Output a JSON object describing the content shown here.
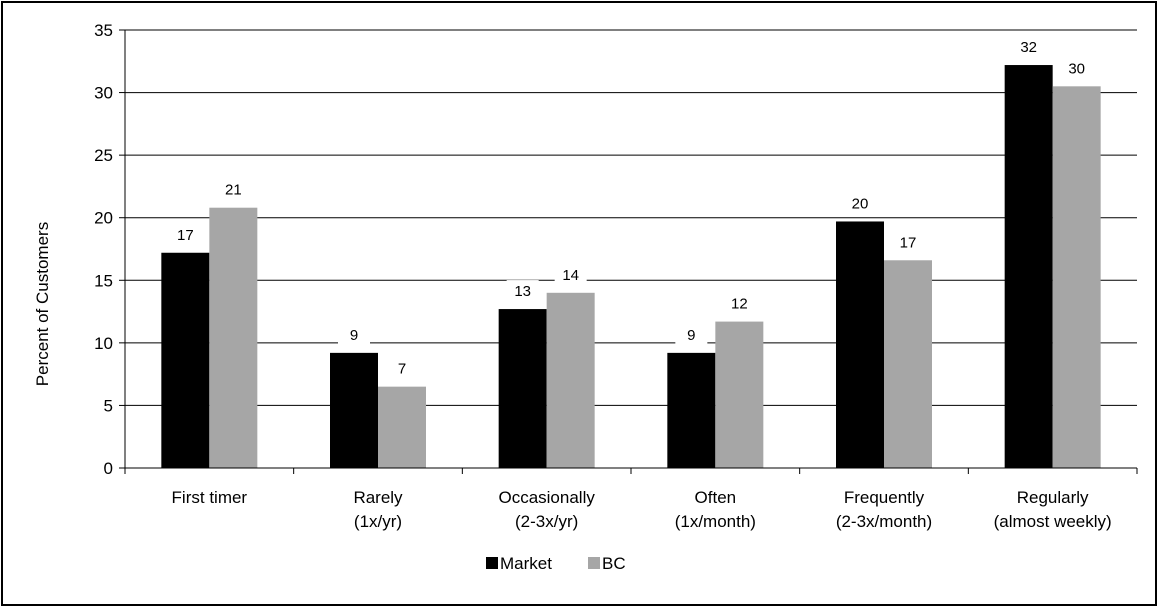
{
  "chart_data": {
    "type": "bar",
    "title": "",
    "xlabel": "",
    "ylabel": "Percent of Customers",
    "ylim": [
      0,
      35
    ],
    "yticks": [
      0,
      5,
      10,
      15,
      20,
      25,
      30,
      35
    ],
    "grid": true,
    "legend_position": "bottom",
    "categories": [
      [
        "First timer"
      ],
      [
        "Rarely",
        "(1x/yr)"
      ],
      [
        "Occasionally",
        "(2-3x/yr)"
      ],
      [
        "Often",
        "(1x/month)"
      ],
      [
        "Frequently",
        "(2-3x/month)"
      ],
      [
        "Regularly",
        "(almost weekly)"
      ]
    ],
    "series": [
      {
        "name": "Market",
        "color": "#000000",
        "values": [
          17.2,
          9.2,
          12.7,
          9.2,
          19.7,
          32.2
        ],
        "labels": [
          "17",
          "9",
          "13",
          "9",
          "20",
          "32"
        ]
      },
      {
        "name": "BC",
        "color": "#a6a6a6",
        "values": [
          20.8,
          6.5,
          14.0,
          11.7,
          16.6,
          30.5
        ],
        "labels": [
          "21",
          "7",
          "14",
          "12",
          "17",
          "30"
        ]
      }
    ]
  }
}
